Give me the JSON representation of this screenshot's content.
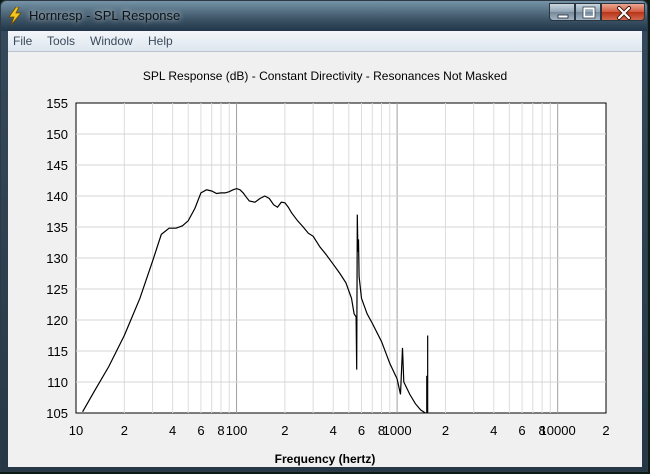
{
  "window": {
    "title": "Hornresp - SPL Response",
    "controls": {
      "minimize": "minimize-icon",
      "maximize": "maximize-icon",
      "close": "close-icon"
    }
  },
  "menu": {
    "items": [
      "File",
      "Tools",
      "Window",
      "Help"
    ]
  },
  "chart_data": {
    "type": "line",
    "title": "SPL Response (dB) - Constant Directivity - Resonances Not Masked",
    "xlabel": "Frequency (hertz)",
    "ylabel": "",
    "xscale": "log",
    "xlim": [
      10,
      20000
    ],
    "ylim": [
      105,
      155
    ],
    "grid": true,
    "x_tick_labels": [
      {
        "value": 10,
        "label": "10"
      },
      {
        "value": 20,
        "label": "2"
      },
      {
        "value": 40,
        "label": "4"
      },
      {
        "value": 60,
        "label": "6"
      },
      {
        "value": 80,
        "label": "8"
      },
      {
        "value": 100,
        "label": "100"
      },
      {
        "value": 200,
        "label": "2"
      },
      {
        "value": 400,
        "label": "4"
      },
      {
        "value": 600,
        "label": "6"
      },
      {
        "value": 800,
        "label": "8"
      },
      {
        "value": 1000,
        "label": "1000"
      },
      {
        "value": 2000,
        "label": "2"
      },
      {
        "value": 4000,
        "label": "4"
      },
      {
        "value": 6000,
        "label": "6"
      },
      {
        "value": 8000,
        "label": "8"
      },
      {
        "value": 10000,
        "label": "10000"
      },
      {
        "value": 20000,
        "label": "2"
      }
    ],
    "y_ticks": [
      105,
      110,
      115,
      120,
      125,
      130,
      135,
      140,
      145,
      150,
      155
    ],
    "series": [
      {
        "color": "#000000",
        "x": [
          11,
          13,
          16,
          20,
          25,
          30,
          34,
          38,
          42,
          46,
          50,
          55,
          60,
          65,
          70,
          75,
          80,
          85,
          90,
          95,
          100,
          105,
          110,
          115,
          120,
          130,
          140,
          150,
          160,
          170,
          180,
          190,
          200,
          210,
          220,
          240,
          260,
          280,
          300,
          330,
          360,
          400,
          440,
          480,
          520,
          540,
          555,
          560,
          565,
          570,
          575,
          580,
          600,
          650,
          700,
          800,
          900,
          1000,
          1050,
          1080,
          1100,
          1200,
          1300,
          1400,
          1500
        ],
        "y": [
          105.2,
          108.5,
          112.5,
          117.5,
          123.5,
          129.5,
          133.8,
          134.8,
          134.8,
          135.2,
          136.0,
          138.0,
          140.5,
          141.0,
          140.8,
          140.4,
          140.5,
          140.5,
          140.7,
          141.0,
          141.2,
          141.0,
          140.5,
          139.8,
          139.2,
          139.0,
          139.6,
          140.0,
          139.6,
          138.6,
          138.2,
          139.0,
          138.9,
          138.2,
          137.3,
          136.0,
          135.0,
          134.0,
          133.5,
          131.8,
          130.6,
          129.0,
          127.5,
          126.0,
          123.5,
          121.0,
          120.5,
          112.0,
          137.0,
          131.0,
          133.0,
          127.0,
          123.5,
          121.0,
          119.5,
          116.5,
          113.0,
          110.5,
          108.0,
          115.5,
          110.0,
          108.0,
          106.5,
          105.5,
          105.0
        ]
      }
    ],
    "resonance_spikes": [
      {
        "x": 1550,
        "y": 117.5
      },
      {
        "x": 1530,
        "y": 111.0
      }
    ]
  }
}
